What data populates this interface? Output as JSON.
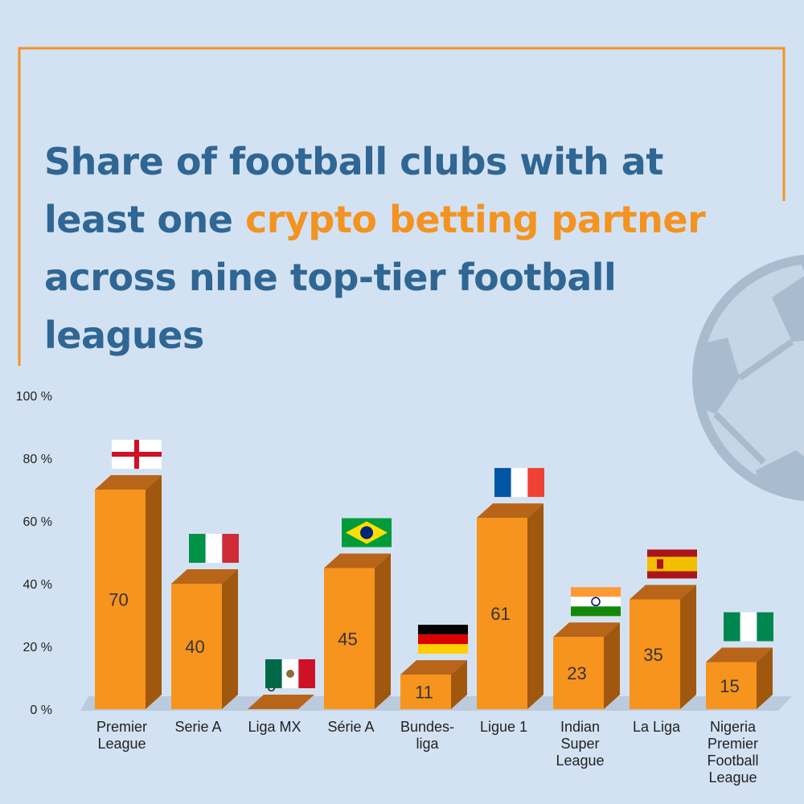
{
  "title": {
    "part1": "Share of football clubs with at least one ",
    "highlight": "crypto betting partner",
    "part2": " across nine top-tier football leagues"
  },
  "colors": {
    "background": "#d3e2f2",
    "title": "#2f6694",
    "highlight": "#f39322",
    "bar_front": "#f7941d",
    "bar_side": "#a0580f",
    "bar_top": "#b8651a"
  },
  "chart_data": {
    "type": "bar",
    "categories": [
      "Premier League",
      "Serie A",
      "Liga MX",
      "Série A",
      "Bundes-liga",
      "Ligue 1",
      "Indian Super League",
      "La Liga",
      "Nigeria Premier Football League"
    ],
    "category_lines": [
      [
        "Premier",
        "League"
      ],
      [
        "Serie A"
      ],
      [
        "Liga MX"
      ],
      [
        "Série A"
      ],
      [
        "Bundes-",
        "liga"
      ],
      [
        "Ligue 1"
      ],
      [
        "Indian",
        "Super",
        "League"
      ],
      [
        "La Liga"
      ],
      [
        "Nigeria",
        "Premier",
        "Football",
        "League"
      ]
    ],
    "values": [
      70,
      40,
      0,
      45,
      11,
      61,
      23,
      35,
      15
    ],
    "flags": [
      "england",
      "italy",
      "mexico",
      "brazil",
      "germany",
      "france",
      "india",
      "spain",
      "nigeria"
    ],
    "ylim": [
      0,
      100
    ],
    "yticks": [
      "0 %",
      "20 %",
      "40 %",
      "60 %",
      "80 %",
      "100 %"
    ],
    "ytick_values": [
      0,
      20,
      40,
      60,
      80,
      100
    ],
    "grid": false,
    "legend": "none"
  }
}
